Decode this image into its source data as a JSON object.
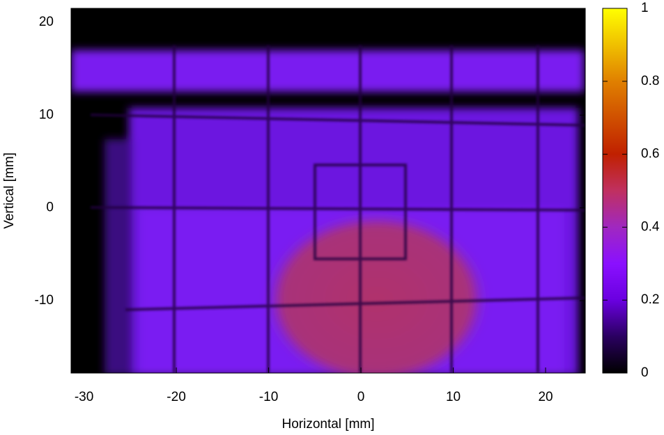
{
  "chart_data": {
    "type": "heatmap",
    "xlabel": "Horizontal [mm]",
    "ylabel": "Vertical [mm]",
    "xlim": [
      -31.4,
      24.3
    ],
    "ylim": [
      -17.8,
      21.5
    ],
    "xticks": [
      -30,
      -20,
      -10,
      0,
      10,
      20
    ],
    "yticks": [
      -10,
      0,
      10,
      20
    ],
    "colorbar": {
      "lim": [
        0,
        1
      ],
      "ticks": [
        0,
        0.2,
        0.4,
        0.6,
        0.8,
        1
      ]
    }
  }
}
